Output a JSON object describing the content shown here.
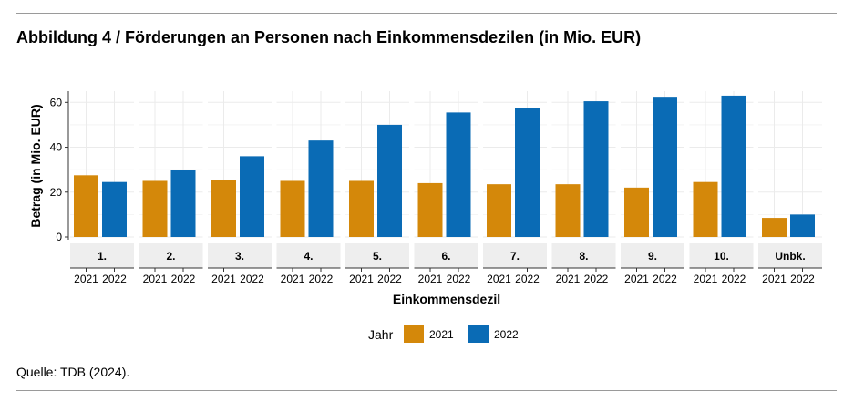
{
  "header": {
    "title": "Abbildung 4 / Förderungen an Personen nach Einkommensdezilen (in Mio. EUR)"
  },
  "footer": {
    "source": "Quelle: TDB (2024)."
  },
  "colors": {
    "series_2021": "#d4880a",
    "series_2022": "#0a6bb5",
    "strip_bg": "#eeeeee",
    "grid": "#ebebeb"
  },
  "chart_data": {
    "type": "bar",
    "xlabel": "Einkommensdezil",
    "ylabel": "Betrag (in Mio. EUR)",
    "ylim": [
      0,
      65
    ],
    "yticks": [
      0,
      20,
      40,
      60
    ],
    "grid": true,
    "legend": {
      "title": "Jahr",
      "position": "bottom"
    },
    "categories": [
      "1.",
      "2.",
      "3.",
      "4.",
      "5.",
      "6.",
      "7.",
      "8.",
      "9.",
      "10.",
      "Unbk."
    ],
    "subcategories": [
      "2021",
      "2022"
    ],
    "series": [
      {
        "name": "2021",
        "values": [
          27.5,
          25,
          25.5,
          25,
          25,
          24,
          23.5,
          23.5,
          22,
          24.5,
          8.5
        ]
      },
      {
        "name": "2022",
        "values": [
          24.5,
          30,
          36,
          43,
          50,
          55.5,
          57.5,
          60.5,
          62.5,
          63,
          10
        ]
      }
    ]
  }
}
